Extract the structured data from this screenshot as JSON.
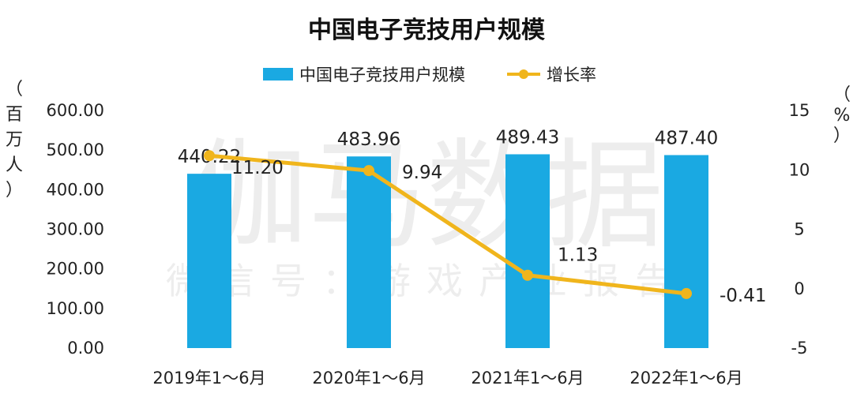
{
  "chart_data": {
    "type": "bar",
    "title": "中国电子竞技用户规模",
    "categories": [
      "2019年1～6月",
      "2020年1～6月",
      "2021年1～6月",
      "2022年1～6月"
    ],
    "series": [
      {
        "name": "中国电子竞技用户规模",
        "type": "bar",
        "axis": "left",
        "values": [
          440.22,
          483.96,
          489.43,
          487.4
        ],
        "labels": [
          "440.22",
          "483.96",
          "489.43",
          "487.40"
        ]
      },
      {
        "name": "增长率",
        "type": "line",
        "axis": "right",
        "values": [
          11.2,
          9.94,
          1.13,
          -0.41
        ],
        "labels": [
          "11.20",
          "9.94",
          "1.13",
          "-0.41"
        ]
      }
    ],
    "y_left": {
      "label": "（百万人）",
      "ylim": [
        0,
        600
      ],
      "ticks": [
        "0.00",
        "100.00",
        "200.00",
        "300.00",
        "400.00",
        "500.00",
        "600.00"
      ]
    },
    "y_right": {
      "label": "（%）",
      "ylim": [
        -5,
        15
      ],
      "ticks": [
        "-5",
        "0",
        "5",
        "10",
        "15"
      ]
    },
    "legend_position": "top-center",
    "grid": false,
    "colors": {
      "bar": "#1aa9e2",
      "line": "#f0b51c"
    }
  },
  "watermark": {
    "main": "伽马数据",
    "sub": "微信号：游戏产业报告"
  }
}
